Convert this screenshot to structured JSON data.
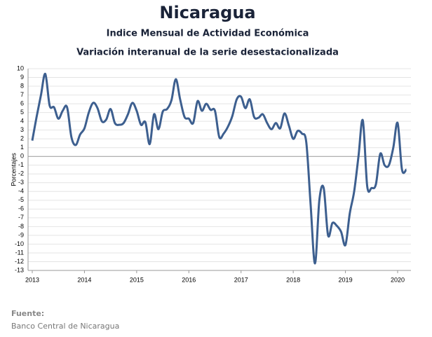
{
  "chart_data": {
    "type": "line",
    "title": "Nicaragua",
    "subtitle": "Indice Mensual de  Actividad Económica",
    "subtitle2": "Variación interanual de la serie desestacionalizada",
    "y_label": "Porcentajes",
    "source_label": "Fuente:",
    "source": "Banco Central de Nicaragua",
    "color": "#3d5f8f",
    "grid": true,
    "xlim": [
      2013,
      2020.25
    ],
    "xticks": [
      2013,
      2014,
      2015,
      2016,
      2017,
      2018,
      2019,
      2020
    ],
    "ylim": [
      -13,
      10
    ],
    "yticks": [
      10,
      9,
      8,
      7,
      6,
      5,
      4,
      3,
      2,
      1,
      0,
      -1,
      -2,
      -3,
      -4,
      -5,
      -6,
      -7,
      -8,
      -9,
      -10,
      -11,
      -12,
      -13
    ],
    "x": [
      2013,
      2013.083,
      2013.167,
      2013.25,
      2013.333,
      2013.417,
      2013.5,
      2013.583,
      2013.667,
      2013.75,
      2013.833,
      2013.917,
      2014,
      2014.083,
      2014.167,
      2014.25,
      2014.333,
      2014.417,
      2014.5,
      2014.583,
      2014.667,
      2014.75,
      2014.833,
      2014.917,
      2015,
      2015.083,
      2015.167,
      2015.25,
      2015.333,
      2015.417,
      2015.5,
      2015.583,
      2015.667,
      2015.75,
      2015.833,
      2015.917,
      2016,
      2016.083,
      2016.167,
      2016.25,
      2016.333,
      2016.417,
      2016.5,
      2016.583,
      2016.667,
      2016.75,
      2016.833,
      2016.917,
      2017,
      2017.083,
      2017.167,
      2017.25,
      2017.333,
      2017.417,
      2017.5,
      2017.583,
      2017.667,
      2017.75,
      2017.833,
      2017.917,
      2018,
      2018.083,
      2018.167,
      2018.25,
      2018.333,
      2018.417,
      2018.5,
      2018.583,
      2018.667,
      2018.75,
      2018.833,
      2018.917,
      2019,
      2019.083,
      2019.167,
      2019.25,
      2019.333,
      2019.417,
      2019.5,
      2019.583,
      2019.667,
      2019.75,
      2019.833,
      2019.917,
      2020,
      2020.083,
      2020.167
    ],
    "values": [
      1.8,
      4.5,
      7.0,
      9.4,
      5.8,
      5.6,
      4.3,
      5.2,
      5.6,
      2.2,
      1.3,
      2.5,
      3.2,
      5.0,
      6.1,
      5.5,
      4.0,
      4.2,
      5.4,
      3.8,
      3.6,
      3.8,
      4.8,
      6.1,
      5.2,
      3.6,
      3.9,
      1.4,
      4.8,
      3.1,
      5.1,
      5.4,
      6.4,
      8.8,
      6.5,
      4.5,
      4.3,
      3.8,
      6.3,
      5.2,
      6.0,
      5.3,
      5.2,
      2.2,
      2.6,
      3.4,
      4.6,
      6.5,
      6.8,
      5.5,
      6.5,
      4.5,
      4.4,
      4.8,
      3.8,
      3.1,
      3.8,
      3.2,
      4.9,
      3.5,
      2.0,
      2.9,
      2.6,
      1.6,
      -5.5,
      -12.2,
      -5.0,
      -3.6,
      -9.0,
      -7.6,
      -7.9,
      -8.6,
      -10.1,
      -6.5,
      -4.0,
      0.0,
      4.1,
      -3.4,
      -3.6,
      -3.2,
      0.3,
      -1.0,
      -1.0,
      1.0,
      3.8,
      -1.5,
      -1.5
    ]
  }
}
